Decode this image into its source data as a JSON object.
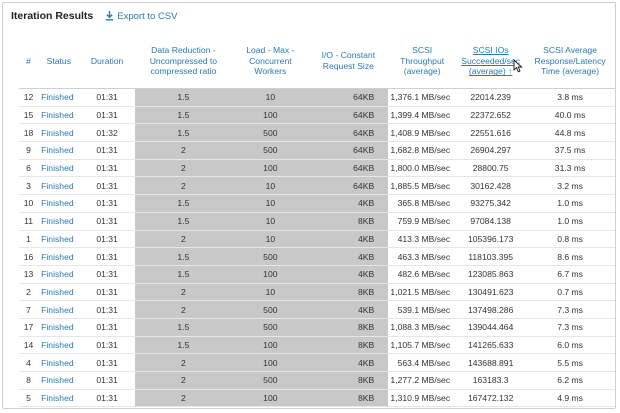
{
  "header": {
    "title": "Iteration Results",
    "export_label": "Export to CSV",
    "sort_arrow": "↑"
  },
  "columns": [
    "#",
    "Status",
    "Duration",
    "Data Reduction - Uncompressed to compressed ratio",
    "Load - Max - Concurrent Workers",
    "I/O - Constant Request Size",
    "SCSI Throughput (average)",
    "SCSI IOs Succeeded/sec (average)",
    "SCSI Average Response/Latency Time (average)"
  ],
  "rows": [
    [
      "12",
      "Finished",
      "01:31",
      "1.5",
      "10",
      "64KB",
      "1,376.1 MB/sec",
      "22014.239",
      "3.8 ms"
    ],
    [
      "15",
      "Finished",
      "01:31",
      "1.5",
      "100",
      "64KB",
      "1,399.4 MB/sec",
      "22372.652",
      "40.0 ms"
    ],
    [
      "18",
      "Finished",
      "01:32",
      "1.5",
      "500",
      "64KB",
      "1,408.9 MB/sec",
      "22551.616",
      "44.8 ms"
    ],
    [
      "9",
      "Finished",
      "01:31",
      "2",
      "500",
      "64KB",
      "1,682.8 MB/sec",
      "26904.297",
      "37.5 ms"
    ],
    [
      "6",
      "Finished",
      "01:31",
      "2",
      "100",
      "64KB",
      "1,800.0 MB/sec",
      "28800.75",
      "31.3 ms"
    ],
    [
      "3",
      "Finished",
      "01:31",
      "2",
      "10",
      "64KB",
      "1,885.5 MB/sec",
      "30162.428",
      "3.2 ms"
    ],
    [
      "10",
      "Finished",
      "01:31",
      "1.5",
      "10",
      "4KB",
      "365.8 MB/sec",
      "93275.342",
      "1.0 ms"
    ],
    [
      "11",
      "Finished",
      "01:31",
      "1.5",
      "10",
      "8KB",
      "759.9 MB/sec",
      "97084.138",
      "1.0 ms"
    ],
    [
      "1",
      "Finished",
      "01:31",
      "2",
      "10",
      "4KB",
      "413.3 MB/sec",
      "105396.173",
      "0.8 ms"
    ],
    [
      "16",
      "Finished",
      "01:31",
      "1.5",
      "500",
      "4KB",
      "463.3 MB/sec",
      "118103.395",
      "8.6 ms"
    ],
    [
      "13",
      "Finished",
      "01:31",
      "1.5",
      "100",
      "4KB",
      "482.6 MB/sec",
      "123085.863",
      "6.7 ms"
    ],
    [
      "2",
      "Finished",
      "01:31",
      "2",
      "10",
      "8KB",
      "1,021.5 MB/sec",
      "130491.623",
      "0.7 ms"
    ],
    [
      "7",
      "Finished",
      "01:31",
      "2",
      "500",
      "4KB",
      "539.1 MB/sec",
      "137498.286",
      "7.3 ms"
    ],
    [
      "17",
      "Finished",
      "01:31",
      "1.5",
      "500",
      "8KB",
      "1,088.3 MB/sec",
      "139044.464",
      "7.3 ms"
    ],
    [
      "14",
      "Finished",
      "01:31",
      "1.5",
      "100",
      "8KB",
      "1,105.7 MB/sec",
      "141265.633",
      "6.0 ms"
    ],
    [
      "4",
      "Finished",
      "01:31",
      "2",
      "100",
      "4KB",
      "563.4 MB/sec",
      "143688.891",
      "5.5 ms"
    ],
    [
      "8",
      "Finished",
      "01:31",
      "2",
      "500",
      "8KB",
      "1,277.2 MB/sec",
      "163183.3",
      "6.2 ms"
    ],
    [
      "5",
      "Finished",
      "01:31",
      "2",
      "100",
      "8KB",
      "1,310.9 MB/sec",
      "167472.132",
      "4.9 ms"
    ]
  ],
  "colors": {
    "link": "#2a7ab0",
    "shaded_column": "#c8c8c8",
    "text": "#333333"
  },
  "icons": {
    "export": "download-icon",
    "cursor": "mouse-pointer-icon"
  }
}
